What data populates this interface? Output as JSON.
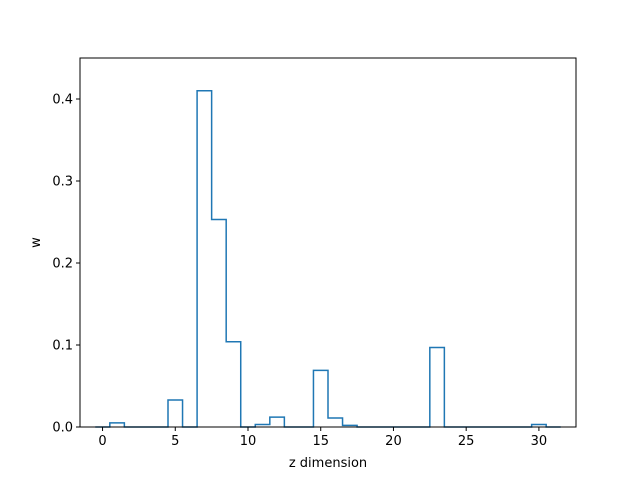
{
  "chart_data": {
    "type": "step",
    "xlabel": "z dimension",
    "ylabel": "w",
    "xlim": [
      -1.55,
      32.55
    ],
    "ylim": [
      0,
      0.45
    ],
    "xticks": [
      0,
      5,
      10,
      15,
      20,
      25,
      30
    ],
    "yticks": [
      0.0,
      0.1,
      0.2,
      0.3,
      0.4
    ],
    "xtick_labels": [
      "0",
      "5",
      "10",
      "15",
      "20",
      "25",
      "30"
    ],
    "ytick_labels": [
      "0.0",
      "0.1",
      "0.2",
      "0.3",
      "0.4"
    ],
    "grid": false,
    "line_color": "#1f77b4",
    "x": [
      0,
      1,
      2,
      3,
      4,
      5,
      6,
      7,
      8,
      9,
      10,
      11,
      12,
      13,
      14,
      15,
      16,
      17,
      18,
      19,
      20,
      21,
      22,
      23,
      24,
      25,
      26,
      27,
      28,
      29,
      30,
      31
    ],
    "values": [
      0.0,
      0.005,
      0.0,
      0.0,
      0.0,
      0.033,
      0.0,
      0.41,
      0.253,
      0.104,
      0.0,
      0.003,
      0.012,
      0.0,
      0.0,
      0.069,
      0.011,
      0.002,
      0.0,
      0.0,
      0.0,
      0.0,
      0.0,
      0.097,
      0.0,
      0.0,
      0.0,
      0.0,
      0.0,
      0.0,
      0.003,
      0.0
    ]
  }
}
